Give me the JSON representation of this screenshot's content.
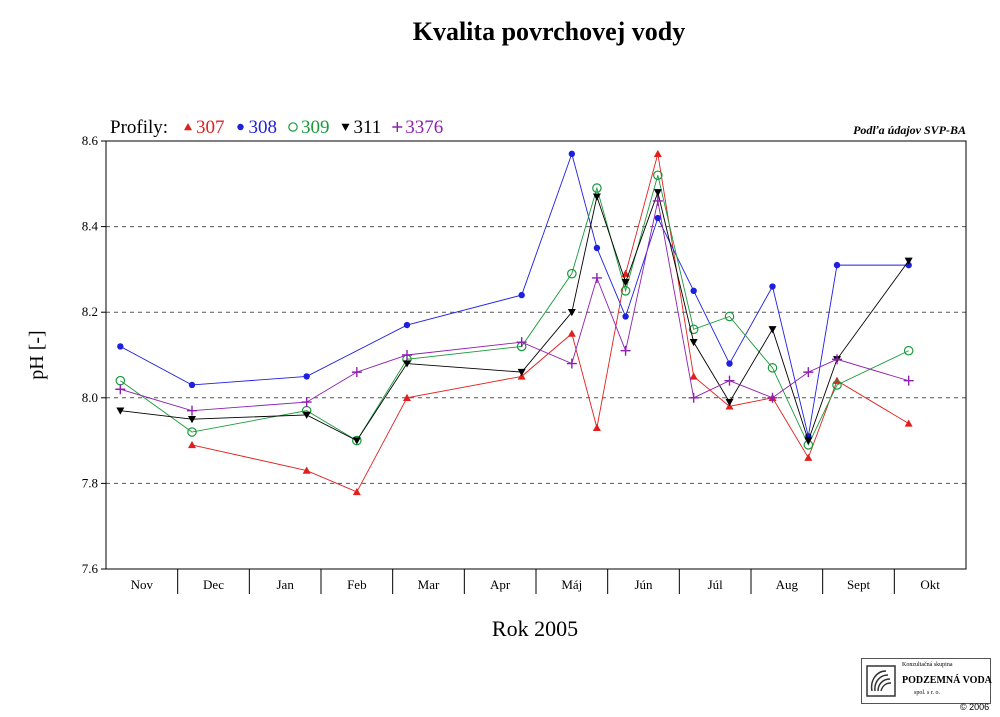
{
  "chart_data": {
    "type": "line",
    "title": "Kvalita povrchovej vody",
    "xlabel": "Rok 2005",
    "ylabel": "pH [-]",
    "note": "Podľa údajov SVP-BA",
    "legend_title": "Profily:",
    "legend_position": "top-left",
    "categories": [
      "Nov",
      "Dec",
      "Jan",
      "Feb",
      "Mar",
      "Apr",
      "Máj",
      "Jún",
      "Júl",
      "Aug",
      "Sept",
      "Okt"
    ],
    "ylim": [
      7.6,
      8.6
    ],
    "yticks": [
      "7.6",
      "7.8",
      "8.0",
      "8.2",
      "8.4",
      "8.6"
    ],
    "dashed_gridlines": [
      7.8,
      8.0,
      8.2,
      8.4
    ],
    "series": [
      {
        "name": "307",
        "color": "#e0201e",
        "marker": "triangle-up",
        "points": [
          [
            1.2,
            7.89
          ],
          [
            2.8,
            7.83
          ],
          [
            3.5,
            7.78
          ],
          [
            4.2,
            8.0
          ],
          [
            5.8,
            8.05
          ],
          [
            6.5,
            8.15
          ],
          [
            6.85,
            7.93
          ],
          [
            7.25,
            8.29
          ],
          [
            7.7,
            8.57
          ],
          [
            8.2,
            8.05
          ],
          [
            8.7,
            7.98
          ],
          [
            9.3,
            8.0
          ],
          [
            9.8,
            7.86
          ],
          [
            10.2,
            8.04
          ],
          [
            11.2,
            7.94
          ]
        ]
      },
      {
        "name": "308",
        "color": "#1f1fe0",
        "marker": "circle-filled",
        "points": [
          [
            0.2,
            8.12
          ],
          [
            1.2,
            8.03
          ],
          [
            2.8,
            8.05
          ],
          [
            4.2,
            8.17
          ],
          [
            5.8,
            8.24
          ],
          [
            6.5,
            8.57
          ],
          [
            6.85,
            8.35
          ],
          [
            7.25,
            8.19
          ],
          [
            7.7,
            8.42
          ],
          [
            8.2,
            8.25
          ],
          [
            8.7,
            8.08
          ],
          [
            9.3,
            8.26
          ],
          [
            9.8,
            7.91
          ],
          [
            10.2,
            8.31
          ],
          [
            11.2,
            8.31
          ]
        ]
      },
      {
        "name": "309",
        "color": "#1a9a3a",
        "marker": "circle-open",
        "points": [
          [
            0.2,
            8.04
          ],
          [
            1.2,
            7.92
          ],
          [
            2.8,
            7.97
          ],
          [
            3.5,
            7.9
          ],
          [
            4.2,
            8.09
          ],
          [
            5.8,
            8.12
          ],
          [
            6.5,
            8.29
          ],
          [
            6.85,
            8.49
          ],
          [
            7.25,
            8.25
          ],
          [
            7.7,
            8.52
          ],
          [
            8.2,
            8.16
          ],
          [
            8.7,
            8.19
          ],
          [
            9.3,
            8.07
          ],
          [
            9.8,
            7.89
          ],
          [
            10.2,
            8.03
          ],
          [
            11.2,
            8.11
          ]
        ]
      },
      {
        "name": "311",
        "color": "#000000",
        "marker": "triangle-down",
        "points": [
          [
            0.2,
            7.97
          ],
          [
            1.2,
            7.95
          ],
          [
            2.8,
            7.96
          ],
          [
            3.5,
            7.9
          ],
          [
            4.2,
            8.08
          ],
          [
            5.8,
            8.06
          ],
          [
            6.5,
            8.2
          ],
          [
            6.85,
            8.47
          ],
          [
            7.25,
            8.27
          ],
          [
            7.7,
            8.48
          ],
          [
            8.2,
            8.13
          ],
          [
            8.7,
            7.99
          ],
          [
            9.3,
            8.16
          ],
          [
            9.8,
            7.9
          ],
          [
            10.2,
            8.09
          ],
          [
            11.2,
            8.32
          ]
        ]
      },
      {
        "name": "3376",
        "color": "#8e1fb0",
        "marker": "plus",
        "points": [
          [
            0.2,
            8.02
          ],
          [
            1.2,
            7.97
          ],
          [
            2.8,
            7.99
          ],
          [
            3.5,
            8.06
          ],
          [
            4.2,
            8.1
          ],
          [
            5.8,
            8.13
          ],
          [
            6.5,
            8.08
          ],
          [
            6.85,
            8.28
          ],
          [
            7.25,
            8.11
          ],
          [
            7.7,
            8.46
          ],
          [
            8.2,
            8.0
          ],
          [
            8.7,
            8.04
          ],
          [
            9.3,
            8.0
          ],
          [
            9.8,
            8.06
          ],
          [
            10.2,
            8.09
          ],
          [
            11.2,
            8.04
          ]
        ]
      }
    ]
  },
  "logo": {
    "top": "Konzultačná skupina",
    "name": "PODZEMNÁ VODA",
    "sub": "spol. s r. o."
  },
  "copyright": "© 2006"
}
